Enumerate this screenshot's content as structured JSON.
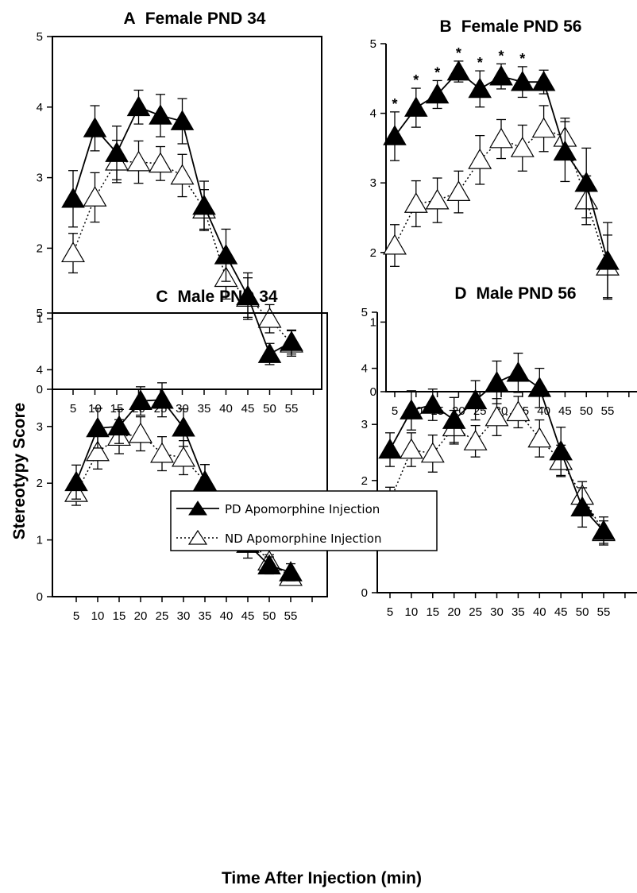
{
  "figure": {
    "ylabel": "Stereotypy Score",
    "xlabel": "Time After Injection (min)"
  },
  "legend": {
    "entries": [
      {
        "label": "PD Apomorphine Injection",
        "marker": "filled-triangle",
        "line": "solid"
      },
      {
        "label": "ND Apomorphine Injection",
        "marker": "open-triangle",
        "line": "dotted"
      }
    ],
    "placement": "inside panel C, top-right"
  },
  "chart_data": [
    {
      "type": "line",
      "panel": "A",
      "title": "Female PND 34",
      "letter": "A",
      "subtitle": "Female PND 34",
      "x": [
        5,
        10,
        15,
        20,
        25,
        30,
        35,
        40,
        45,
        50,
        55
      ],
      "xticks": [
        "5",
        "10",
        "15",
        "20",
        "25",
        "30",
        "35",
        "40",
        "45",
        "50",
        "55"
      ],
      "ylim": [
        0,
        5
      ],
      "yticks": [
        "0",
        "1",
        "2",
        "3",
        "4",
        "5"
      ],
      "series": [
        {
          "name": "PD Apomorphine Injection",
          "values": [
            2.7,
            3.7,
            3.35,
            4.0,
            3.88,
            3.8,
            2.6,
            1.9,
            1.32,
            0.5,
            0.67
          ],
          "err": [
            0.4,
            0.32,
            0.38,
            0.24,
            0.3,
            0.32,
            0.35,
            0.37,
            0.33,
            0.15,
            0.17
          ]
        },
        {
          "name": "ND Apomorphine Injection",
          "values": [
            1.93,
            2.72,
            3.23,
            3.22,
            3.2,
            3.03,
            2.55,
            1.58,
            1.3,
            1.0,
            0.65
          ],
          "err": [
            0.28,
            0.35,
            0.3,
            0.3,
            0.24,
            0.3,
            0.28,
            0.3,
            0.28,
            0.2,
            0.18
          ]
        }
      ],
      "significance": []
    },
    {
      "type": "line",
      "panel": "B",
      "title": "Female PND 56",
      "letter": "B",
      "subtitle": "Female PND 56",
      "x": [
        5,
        10,
        15,
        20,
        25,
        30,
        35,
        40,
        45,
        50,
        55
      ],
      "xticks": [
        "5",
        "10",
        "15",
        "20",
        "25",
        "30",
        "35",
        "40",
        "45",
        "50",
        "55"
      ],
      "ylim": [
        0,
        5
      ],
      "yticks": [
        "0",
        "1",
        "2",
        "3",
        "4",
        "5"
      ],
      "series": [
        {
          "name": "PD Apomorphine Injection",
          "values": [
            3.67,
            4.08,
            4.27,
            4.6,
            4.35,
            4.53,
            4.45,
            4.45,
            3.45,
            3.0,
            1.88
          ],
          "err": [
            0.35,
            0.28,
            0.2,
            0.15,
            0.26,
            0.18,
            0.22,
            0.17,
            0.43,
            0.5,
            0.55
          ]
        },
        {
          "name": "ND Apomorphine Injection",
          "values": [
            2.1,
            2.7,
            2.75,
            2.87,
            3.33,
            3.63,
            3.5,
            3.78,
            3.65,
            2.75,
            1.8
          ],
          "err": [
            0.3,
            0.33,
            0.32,
            0.3,
            0.35,
            0.28,
            0.33,
            0.33,
            0.28,
            0.35,
            0.45
          ]
        }
      ],
      "significance": [
        {
          "x": 5,
          "label": "*"
        },
        {
          "x": 10,
          "label": "*"
        },
        {
          "x": 15,
          "label": "*"
        },
        {
          "x": 20,
          "label": "*"
        },
        {
          "x": 25,
          "label": "*"
        },
        {
          "x": 30,
          "label": "*"
        },
        {
          "x": 35,
          "label": "*"
        }
      ]
    },
    {
      "type": "line",
      "panel": "C",
      "title": "Male PND 34",
      "letter": "C",
      "subtitle": "Male PND 34",
      "x": [
        5,
        10,
        15,
        20,
        25,
        30,
        35,
        40,
        45,
        50,
        55
      ],
      "xticks": [
        "5",
        "10",
        "15",
        "20",
        "25",
        "30",
        "35",
        "40",
        "45",
        "50",
        "55"
      ],
      "ylim": [
        0,
        5
      ],
      "yticks": [
        "0",
        "1",
        "2",
        "3",
        "4",
        "5"
      ],
      "series": [
        {
          "name": "PD Apomorphine Injection",
          "values": [
            2.02,
            2.97,
            3.0,
            3.45,
            3.47,
            2.98,
            2.03,
            1.33,
            0.93,
            0.55,
            0.43
          ],
          "err": [
            0.3,
            0.35,
            0.3,
            0.25,
            0.3,
            0.33,
            0.3,
            0.3,
            0.25,
            0.15,
            0.15
          ]
        },
        {
          "name": "ND Apomorphine Injection",
          "values": [
            1.83,
            2.55,
            2.82,
            2.87,
            2.52,
            2.45,
            2.03,
            1.6,
            1.05,
            0.62,
            0.35
          ],
          "err": [
            0.22,
            0.3,
            0.3,
            0.3,
            0.3,
            0.3,
            0.3,
            0.2,
            0.2,
            0.12,
            0.1
          ]
        }
      ],
      "significance": []
    },
    {
      "type": "line",
      "panel": "D",
      "title": "Male PND 56",
      "letter": "D",
      "subtitle": "Male PND 56",
      "x": [
        5,
        10,
        15,
        20,
        25,
        30,
        35,
        40,
        45,
        50,
        55
      ],
      "xticks": [
        "5",
        "10",
        "15",
        "20",
        "25",
        "30",
        "35",
        "40",
        "45",
        "50",
        "55"
      ],
      "ylim": [
        0,
        5
      ],
      "yticks": [
        "0",
        "1",
        "2",
        "3",
        "4",
        "5"
      ],
      "series": [
        {
          "name": "PD Apomorphine Injection",
          "values": [
            2.55,
            3.25,
            3.35,
            3.08,
            3.43,
            3.75,
            3.92,
            3.65,
            2.52,
            1.52,
            1.1
          ],
          "err": [
            0.3,
            0.35,
            0.28,
            0.4,
            0.35,
            0.38,
            0.35,
            0.35,
            0.43,
            0.35,
            0.25
          ]
        },
        {
          "name": "ND Apomorphine Injection",
          "values": [
            1.63,
            2.55,
            2.48,
            2.95,
            2.7,
            3.13,
            3.22,
            2.75,
            2.35,
            1.73,
            1.08
          ],
          "err": [
            0.25,
            0.3,
            0.33,
            0.3,
            0.28,
            0.33,
            0.28,
            0.33,
            0.28,
            0.25,
            0.2
          ]
        }
      ],
      "significance": []
    }
  ]
}
